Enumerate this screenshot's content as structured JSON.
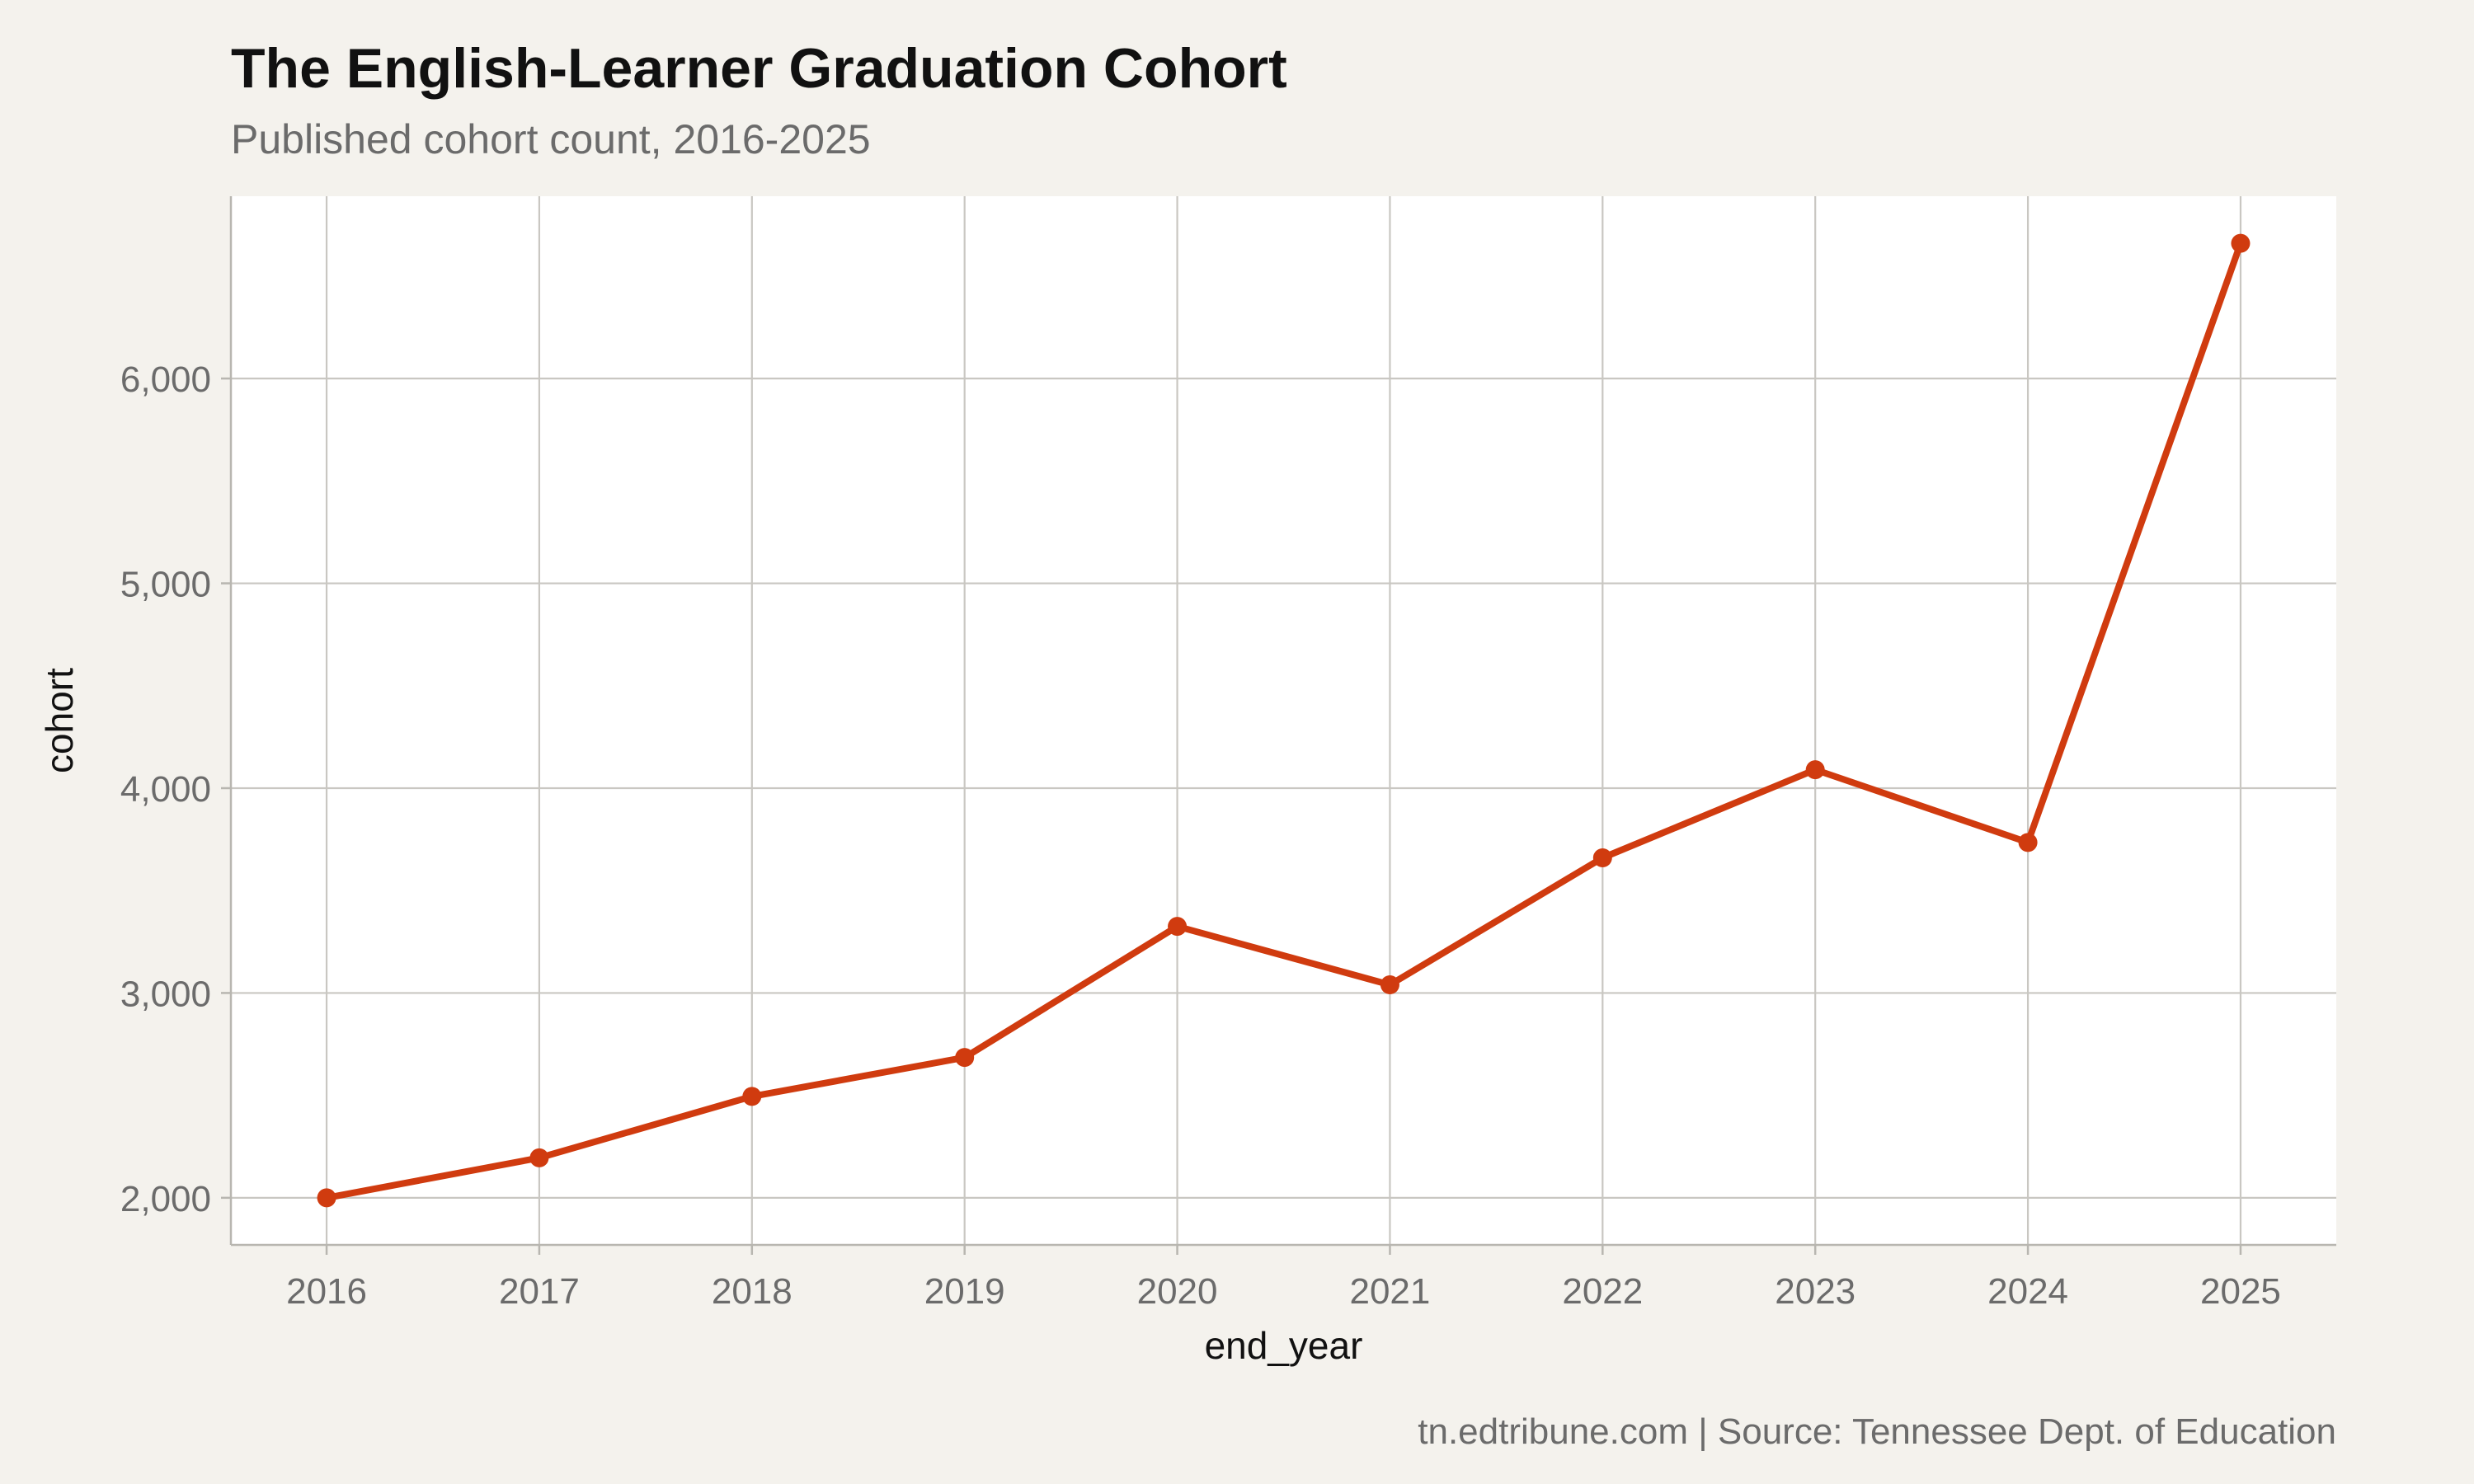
{
  "title": "The English-Learner Graduation Cohort",
  "subtitle": "Published cohort count, 2016-2025",
  "caption": "tn.edtribune.com | Source: Tennessee Dept. of Education",
  "colors": {
    "line": "#d03b0f",
    "panel": "#ffffff",
    "background": "#f4f2ed",
    "grid": "#c9c7c2"
  },
  "chart_data": {
    "type": "line",
    "x": [
      2016,
      2017,
      2018,
      2019,
      2020,
      2021,
      2022,
      2023,
      2024,
      2025
    ],
    "series": [
      {
        "values": [
          2000,
          2195,
          2495,
          2685,
          3325,
          3040,
          3660,
          4090,
          3735,
          6660
        ]
      }
    ],
    "xlabel": "end_year",
    "ylabel": "cohort",
    "xticks": [
      "2016",
      "2017",
      "2018",
      "2019",
      "2020",
      "2021",
      "2022",
      "2023",
      "2024",
      "2025"
    ],
    "yticks": [
      2000,
      3000,
      4000,
      5000,
      6000
    ],
    "ytick_labels": [
      "2,000",
      "3,000",
      "4,000",
      "5,000",
      "6,000"
    ],
    "xlim": [
      2015.55,
      2025.45
    ],
    "ylim": [
      1770,
      6890
    ],
    "grid": true,
    "legend": "none"
  }
}
